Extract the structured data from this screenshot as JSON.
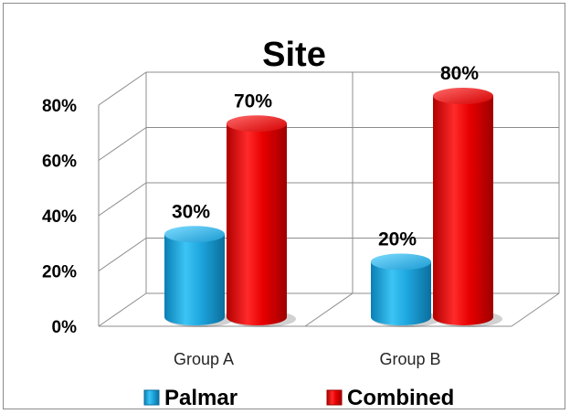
{
  "chart_data": {
    "type": "bar",
    "style": "3d-cylinder",
    "title": "Site",
    "categories": [
      "Group A",
      "Group B"
    ],
    "series": [
      {
        "name": "Palmar",
        "values": [
          30,
          20
        ],
        "labels": [
          "30%",
          "20%"
        ],
        "color": "#1fa3dc"
      },
      {
        "name": "Combined",
        "values": [
          70,
          80
        ],
        "labels": [
          "70%",
          "80%"
        ],
        "color": "#e00000"
      }
    ],
    "ylim": [
      0,
      80
    ],
    "yticks": [
      "0%",
      "20%",
      "40%",
      "60%",
      "80%"
    ],
    "grid": true,
    "legend_position": "bottom"
  }
}
